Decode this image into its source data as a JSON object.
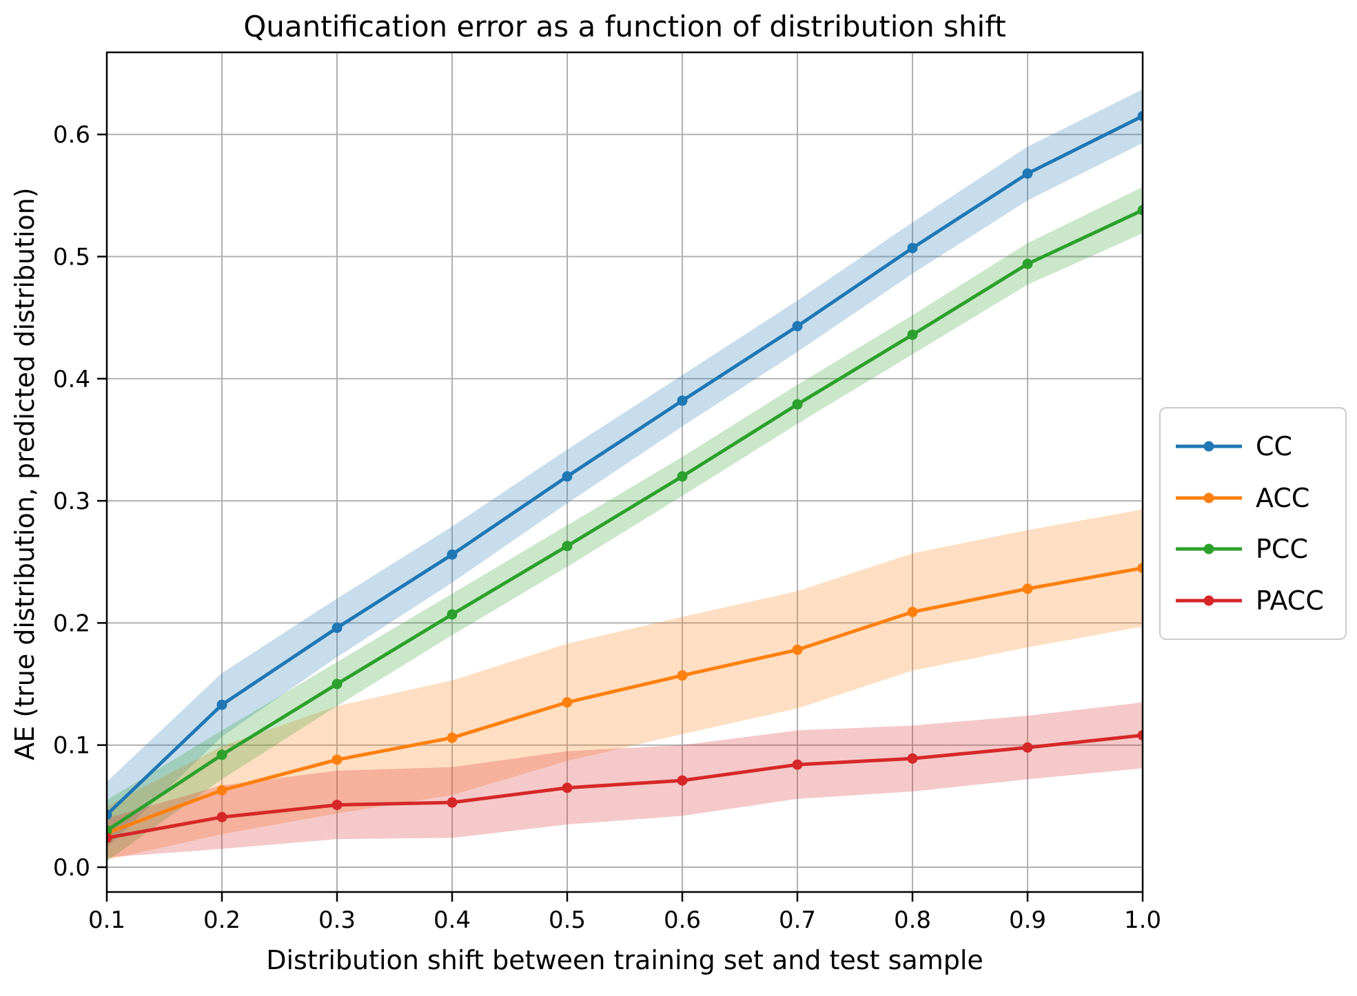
{
  "chart_data": {
    "type": "line",
    "title": "Quantification error as a function of distribution shift",
    "xlabel": "Distribution shift between training set and test sample",
    "ylabel": "AE (true distribution, predicted distribution)",
    "x": [
      0.1,
      0.2,
      0.3,
      0.4,
      0.5,
      0.6,
      0.7,
      0.8,
      0.9,
      1.0
    ],
    "x_tick_labels": [
      "0.1",
      "0.2",
      "0.3",
      "0.4",
      "0.5",
      "0.6",
      "0.7",
      "0.8",
      "0.9",
      "1.0"
    ],
    "y_ticks": [
      0.0,
      0.1,
      0.2,
      0.3,
      0.4,
      0.5,
      0.6
    ],
    "y_tick_labels": [
      "0.0",
      "0.1",
      "0.2",
      "0.3",
      "0.4",
      "0.5",
      "0.6"
    ],
    "xlim": [
      0.1,
      1.0
    ],
    "ylim": [
      -0.021,
      0.667
    ],
    "grid": true,
    "grid_color": "#b0b0b0",
    "legend_position": "center-right-outside",
    "band_opacity": 0.25,
    "series": [
      {
        "name": "CC",
        "color": "#1f77b4",
        "values": [
          0.043,
          0.133,
          0.196,
          0.256,
          0.32,
          0.382,
          0.443,
          0.507,
          0.568,
          0.615
        ],
        "band_halfwidth": [
          0.027,
          0.026,
          0.024,
          0.023,
          0.022,
          0.021,
          0.021,
          0.021,
          0.022,
          0.022
        ]
      },
      {
        "name": "ACC",
        "color": "#ff7f0e",
        "values": [
          0.028,
          0.063,
          0.088,
          0.106,
          0.135,
          0.157,
          0.178,
          0.209,
          0.228,
          0.245
        ],
        "band_halfwidth": [
          0.022,
          0.036,
          0.044,
          0.047,
          0.048,
          0.048,
          0.048,
          0.048,
          0.048,
          0.048
        ]
      },
      {
        "name": "PCC",
        "color": "#2ca02c",
        "values": [
          0.03,
          0.092,
          0.15,
          0.207,
          0.263,
          0.32,
          0.379,
          0.436,
          0.494,
          0.538
        ],
        "band_halfwidth": [
          0.025,
          0.02,
          0.018,
          0.017,
          0.017,
          0.016,
          0.016,
          0.016,
          0.017,
          0.019
        ]
      },
      {
        "name": "PACC",
        "color": "#d62728",
        "values": [
          0.024,
          0.041,
          0.051,
          0.053,
          0.065,
          0.071,
          0.084,
          0.089,
          0.098,
          0.108
        ],
        "band_halfwidth": [
          0.016,
          0.026,
          0.028,
          0.029,
          0.03,
          0.029,
          0.028,
          0.027,
          0.026,
          0.027
        ]
      }
    ]
  }
}
